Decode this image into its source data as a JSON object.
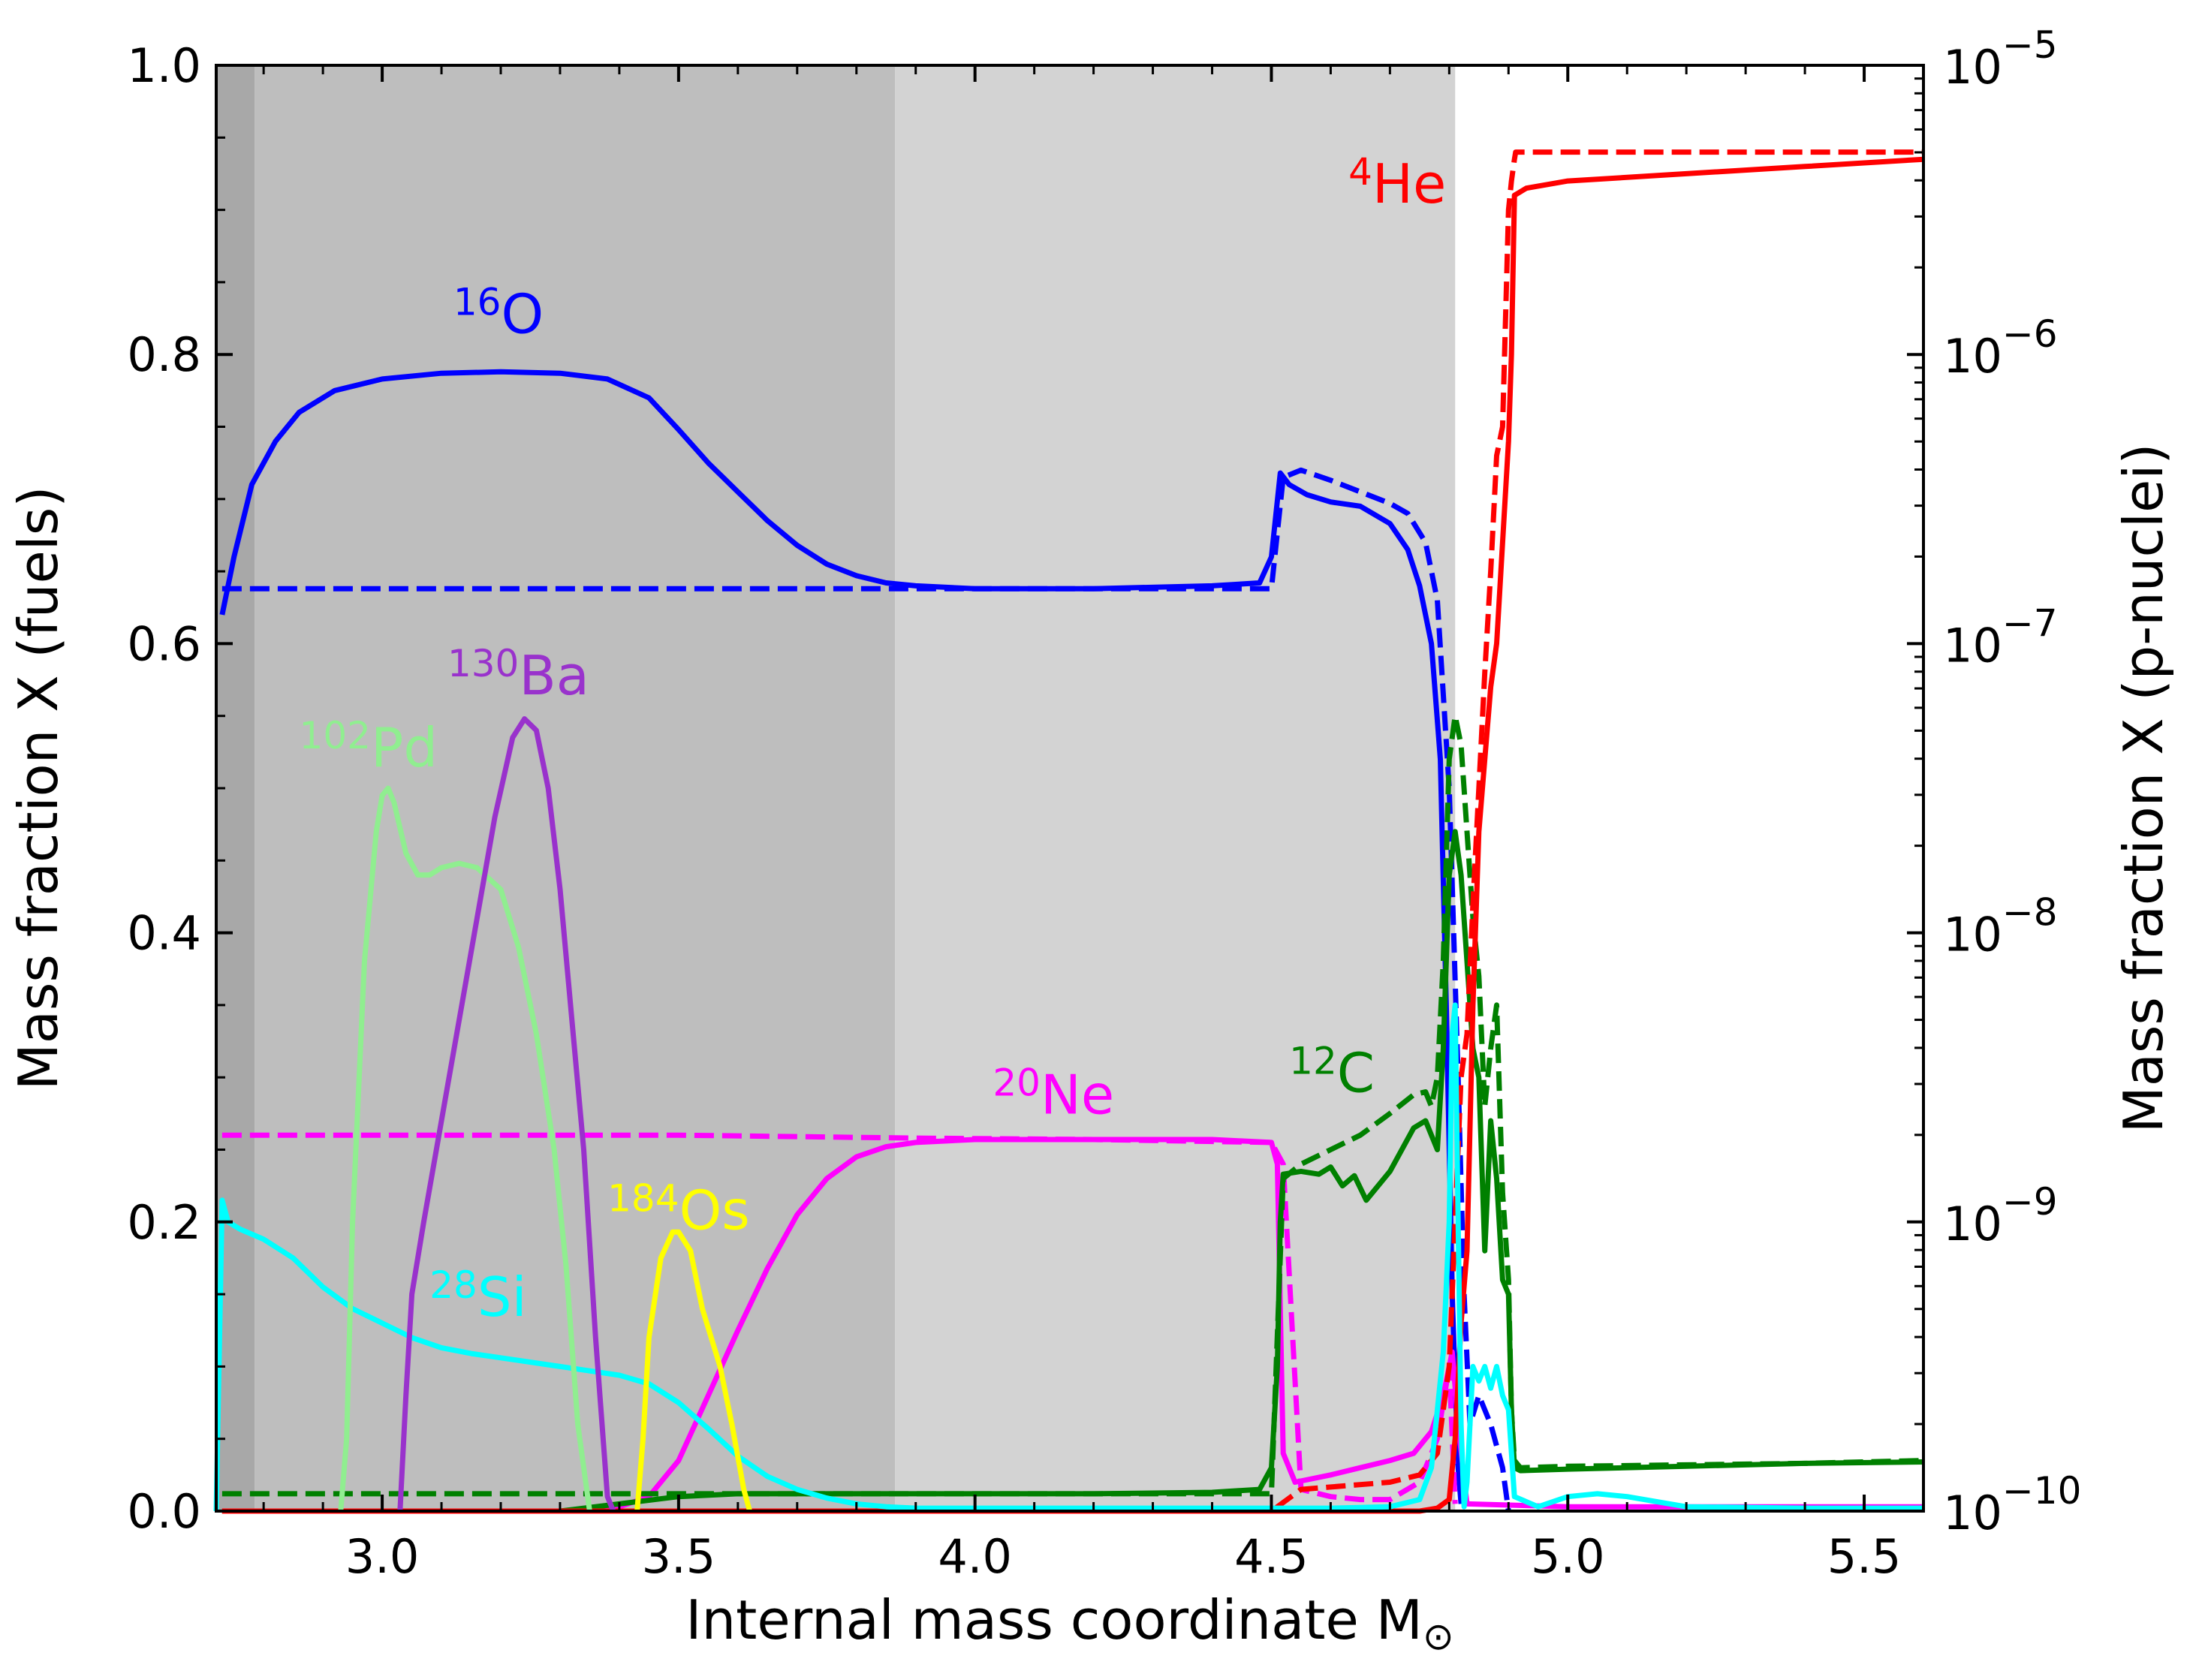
{
  "chart_data": {
    "type": "line",
    "xlabel": "Internal mass coordinate M",
    "xlabel_symbol": "⊙",
    "ylabel_left": "Mass fraction X (fuels)",
    "ylabel_right": "Mass fraction X (p-nuclei)",
    "xlim": [
      2.72,
      5.6
    ],
    "ylim_left": [
      0.0,
      1.0
    ],
    "ylim_right_log10": [
      -10,
      -5
    ],
    "x_ticks": [
      "3.0",
      "3.5",
      "4.0",
      "4.5",
      "5.0",
      "5.5"
    ],
    "y_ticks_left": [
      "0.0",
      "0.2",
      "0.4",
      "0.6",
      "0.8",
      "1.0"
    ],
    "y_ticks_right": [
      {
        "base": "10",
        "exp": "−10"
      },
      {
        "base": "10",
        "exp": "−9"
      },
      {
        "base": "10",
        "exp": "−8"
      },
      {
        "base": "10",
        "exp": "−7"
      },
      {
        "base": "10",
        "exp": "−6"
      },
      {
        "base": "10",
        "exp": "−5"
      }
    ],
    "shaded_regions": [
      {
        "x0": 2.72,
        "x1": 2.785,
        "color": "#a8a8a8"
      },
      {
        "x0": 2.785,
        "x1": 3.865,
        "color": "#bebebe"
      },
      {
        "x0": 3.865,
        "x1": 4.81,
        "color": "#d3d3d3"
      }
    ],
    "labels": [
      {
        "sup": "16",
        "text": "O",
        "color": "#0000ff",
        "x": 3.12,
        "y": 0.815
      },
      {
        "sup": "130",
        "text": "Ba",
        "color": "#9932cc",
        "x": 3.11,
        "y": 0.565
      },
      {
        "sup": "102",
        "text": "Pd",
        "color": "#90ee90",
        "x": 2.86,
        "y": 0.515
      },
      {
        "sup": "4",
        "text": "He",
        "color": "#ff0000",
        "x": 4.63,
        "y": 0.905
      },
      {
        "sup": "12",
        "text": "C",
        "color": "#008000",
        "x": 4.53,
        "y": 0.29
      },
      {
        "sup": "20",
        "text": "Ne",
        "color": "#ff00ff",
        "x": 4.03,
        "y": 0.275
      },
      {
        "sup": "184",
        "text": "Os",
        "color": "#ffff00",
        "x": 3.38,
        "y": 0.195
      },
      {
        "sup": "28",
        "text": "Si",
        "color": "#00ffff",
        "x": 3.08,
        "y": 0.135
      }
    ],
    "series": [
      {
        "name": "16O",
        "color": "#0000ff",
        "style": "dashed",
        "x": [
          2.73,
          3.5,
          3.9,
          4.2,
          4.5,
          4.52,
          4.55,
          4.6,
          4.65,
          4.7,
          4.73,
          4.76,
          4.78,
          4.8,
          4.815,
          4.825,
          4.835,
          4.85,
          4.87,
          4.89,
          4.9
        ],
        "y": [
          0.638,
          0.638,
          0.638,
          0.638,
          0.638,
          0.715,
          0.72,
          0.713,
          0.705,
          0.697,
          0.69,
          0.67,
          0.63,
          0.5,
          0.3,
          0.15,
          0.06,
          0.08,
          0.06,
          0.03,
          0.0
        ]
      },
      {
        "name": "16O",
        "color": "#0000ff",
        "style": "solid",
        "x": [
          2.73,
          2.75,
          2.78,
          2.82,
          2.86,
          2.92,
          3.0,
          3.1,
          3.2,
          3.3,
          3.38,
          3.45,
          3.5,
          3.55,
          3.6,
          3.65,
          3.7,
          3.75,
          3.8,
          3.85,
          3.9,
          4.0,
          4.2,
          4.4,
          4.48,
          4.5,
          4.515,
          4.53,
          4.56,
          4.6,
          4.65,
          4.7,
          4.73,
          4.75,
          4.77,
          4.785,
          4.795,
          4.805,
          4.815,
          4.82
        ],
        "y": [
          0.62,
          0.66,
          0.71,
          0.74,
          0.76,
          0.775,
          0.783,
          0.787,
          0.788,
          0.787,
          0.783,
          0.77,
          0.748,
          0.725,
          0.705,
          0.685,
          0.668,
          0.655,
          0.647,
          0.642,
          0.64,
          0.638,
          0.638,
          0.64,
          0.642,
          0.66,
          0.718,
          0.71,
          0.703,
          0.698,
          0.695,
          0.683,
          0.665,
          0.64,
          0.6,
          0.52,
          0.35,
          0.15,
          0.03,
          0.005
        ]
      },
      {
        "name": "20Ne",
        "color": "#ff00ff",
        "style": "dashed",
        "x": [
          2.73,
          3.5,
          3.9,
          4.2,
          4.5,
          4.52,
          4.55,
          4.6,
          4.65,
          4.7,
          4.75,
          4.78,
          4.8,
          4.81
        ],
        "y": [
          0.26,
          0.26,
          0.258,
          0.257,
          0.255,
          0.24,
          0.015,
          0.01,
          0.008,
          0.008,
          0.02,
          0.05,
          0.1,
          0.005
        ]
      },
      {
        "name": "20Ne",
        "color": "#ff00ff",
        "style": "solid",
        "x": [
          2.73,
          3.3,
          3.4,
          3.45,
          3.5,
          3.55,
          3.6,
          3.65,
          3.7,
          3.75,
          3.8,
          3.85,
          3.9,
          4.0,
          4.2,
          4.4,
          4.5,
          4.51,
          4.52,
          4.54,
          4.6,
          4.65,
          4.7,
          4.74,
          4.77,
          4.79,
          4.805,
          4.815,
          4.83,
          5.0,
          5.6
        ],
        "y": [
          0.0,
          0.0,
          0.003,
          0.01,
          0.035,
          0.08,
          0.125,
          0.168,
          0.205,
          0.23,
          0.245,
          0.252,
          0.255,
          0.257,
          0.257,
          0.257,
          0.255,
          0.24,
          0.04,
          0.02,
          0.025,
          0.03,
          0.035,
          0.04,
          0.055,
          0.08,
          0.11,
          0.06,
          0.005,
          0.003,
          0.003
        ]
      },
      {
        "name": "12C",
        "color": "#008000",
        "style": "dashed",
        "x": [
          2.73,
          3.5,
          3.9,
          4.2,
          4.5,
          4.52,
          4.55,
          4.6,
          4.65,
          4.7,
          4.74,
          4.76,
          4.77,
          4.78,
          4.79,
          4.8,
          4.81,
          4.82,
          4.83,
          4.84,
          4.85,
          4.86,
          4.87,
          4.88,
          4.89,
          4.9,
          4.905,
          4.91,
          4.92,
          5.0,
          5.2,
          5.4,
          5.6
        ],
        "y": [
          0.012,
          0.012,
          0.012,
          0.012,
          0.012,
          0.23,
          0.24,
          0.25,
          0.26,
          0.275,
          0.288,
          0.29,
          0.28,
          0.3,
          0.38,
          0.52,
          0.55,
          0.53,
          0.47,
          0.41,
          0.37,
          0.28,
          0.32,
          0.35,
          0.22,
          0.16,
          0.07,
          0.035,
          0.03,
          0.031,
          0.032,
          0.033,
          0.035
        ]
      },
      {
        "name": "12C",
        "color": "#008000",
        "style": "solid",
        "x": [
          2.73,
          3.3,
          3.4,
          3.5,
          3.6,
          3.7,
          3.8,
          3.9,
          4.0,
          4.2,
          4.4,
          4.48,
          4.5,
          4.51,
          4.515,
          4.52,
          4.55,
          4.58,
          4.6,
          4.62,
          4.64,
          4.66,
          4.7,
          4.74,
          4.76,
          4.77,
          4.78,
          4.79,
          4.8,
          4.81,
          4.82,
          4.83,
          4.84,
          4.85,
          4.86,
          4.87,
          4.88,
          4.89,
          4.9,
          4.905,
          4.91,
          4.92,
          5.0,
          5.2,
          5.4,
          5.6
        ],
        "y": [
          0.0,
          0.0,
          0.005,
          0.01,
          0.012,
          0.012,
          0.012,
          0.012,
          0.012,
          0.012,
          0.013,
          0.015,
          0.03,
          0.1,
          0.2,
          0.233,
          0.235,
          0.233,
          0.238,
          0.225,
          0.232,
          0.215,
          0.235,
          0.265,
          0.27,
          0.26,
          0.25,
          0.32,
          0.44,
          0.47,
          0.44,
          0.38,
          0.32,
          0.3,
          0.18,
          0.27,
          0.23,
          0.16,
          0.15,
          0.07,
          0.03,
          0.028,
          0.029,
          0.031,
          0.033,
          0.034
        ]
      },
      {
        "name": "4He",
        "color": "#ff0000",
        "style": "dashed",
        "x": [
          2.73,
          4.5,
          4.55,
          4.7,
          4.75,
          4.78,
          4.8,
          4.81,
          4.82,
          4.83,
          4.84,
          4.85,
          4.86,
          4.87,
          4.88,
          4.89,
          4.9,
          4.905,
          4.91,
          4.912,
          5.2,
          5.6
        ],
        "y": [
          0.0,
          0.0,
          0.015,
          0.02,
          0.025,
          0.04,
          0.1,
          0.2,
          0.3,
          0.33,
          0.42,
          0.5,
          0.58,
          0.65,
          0.73,
          0.75,
          0.9,
          0.92,
          0.935,
          0.94,
          0.94,
          0.94
        ]
      },
      {
        "name": "4He",
        "color": "#ff0000",
        "style": "solid",
        "x": [
          2.73,
          4.75,
          4.78,
          4.8,
          4.81,
          4.82,
          4.83,
          4.84,
          4.85,
          4.86,
          4.87,
          4.88,
          4.89,
          4.9,
          4.905,
          4.91,
          4.93,
          5.0,
          5.2,
          5.4,
          5.6
        ],
        "y": [
          0.0,
          0.0,
          0.002,
          0.008,
          0.05,
          0.13,
          0.18,
          0.35,
          0.47,
          0.52,
          0.57,
          0.6,
          0.67,
          0.74,
          0.8,
          0.91,
          0.915,
          0.92,
          0.925,
          0.93,
          0.935
        ]
      },
      {
        "name": "28Si",
        "color": "#00ffff",
        "style": "solid",
        "x": [
          2.72,
          2.73,
          2.74,
          2.76,
          2.8,
          2.85,
          2.9,
          2.95,
          3.0,
          3.05,
          3.1,
          3.15,
          3.2,
          3.3,
          3.4,
          3.45,
          3.5,
          3.55,
          3.6,
          3.65,
          3.7,
          3.75,
          3.8,
          3.85,
          3.9,
          4.0,
          4.3,
          4.6,
          4.7,
          4.75,
          4.77,
          4.79,
          4.8,
          4.805,
          4.81,
          4.815,
          4.82,
          4.825,
          4.83,
          4.84,
          4.85,
          4.86,
          4.87,
          4.88,
          4.89,
          4.9,
          4.91,
          4.95,
          5.0,
          5.05,
          5.1,
          5.2,
          5.4,
          5.6
        ],
        "y": [
          0.0,
          0.215,
          0.2,
          0.195,
          0.188,
          0.175,
          0.155,
          0.14,
          0.13,
          0.12,
          0.113,
          0.109,
          0.106,
          0.1,
          0.094,
          0.088,
          0.075,
          0.057,
          0.038,
          0.024,
          0.015,
          0.009,
          0.005,
          0.003,
          0.002,
          0.002,
          0.002,
          0.002,
          0.003,
          0.008,
          0.03,
          0.11,
          0.2,
          0.33,
          0.35,
          0.2,
          0.06,
          0.003,
          0.02,
          0.1,
          0.09,
          0.1,
          0.085,
          0.1,
          0.08,
          0.07,
          0.01,
          0.003,
          0.01,
          0.012,
          0.01,
          0.003,
          0.002,
          0.002
        ]
      },
      {
        "name": "102Pd",
        "color": "#90ee90",
        "style": "solid",
        "x": [
          2.93,
          2.94,
          2.95,
          2.97,
          2.99,
          3.0,
          3.01,
          3.02,
          3.04,
          3.06,
          3.08,
          3.1,
          3.13,
          3.16,
          3.2,
          3.23,
          3.26,
          3.29,
          3.31,
          3.33,
          3.35
        ],
        "y": [
          0.0,
          0.05,
          0.2,
          0.38,
          0.47,
          0.495,
          0.5,
          0.49,
          0.455,
          0.44,
          0.44,
          0.445,
          0.448,
          0.445,
          0.43,
          0.39,
          0.33,
          0.25,
          0.17,
          0.06,
          0.0
        ]
      },
      {
        "name": "130Ba",
        "color": "#9932cc",
        "style": "solid",
        "x": [
          3.03,
          3.04,
          3.05,
          3.07,
          3.1,
          3.13,
          3.16,
          3.19,
          3.22,
          3.24,
          3.26,
          3.28,
          3.3,
          3.32,
          3.34,
          3.36,
          3.38,
          3.39
        ],
        "y": [
          0.0,
          0.08,
          0.15,
          0.2,
          0.27,
          0.34,
          0.41,
          0.48,
          0.535,
          0.548,
          0.54,
          0.5,
          0.43,
          0.34,
          0.25,
          0.12,
          0.01,
          0.0
        ]
      },
      {
        "name": "184Os",
        "color": "#ffff00",
        "style": "solid",
        "x": [
          3.43,
          3.44,
          3.45,
          3.47,
          3.49,
          3.5,
          3.52,
          3.54,
          3.57,
          3.59,
          3.61,
          3.62
        ],
        "y": [
          0.0,
          0.05,
          0.12,
          0.175,
          0.193,
          0.193,
          0.18,
          0.14,
          0.1,
          0.06,
          0.015,
          0.0
        ]
      }
    ]
  }
}
